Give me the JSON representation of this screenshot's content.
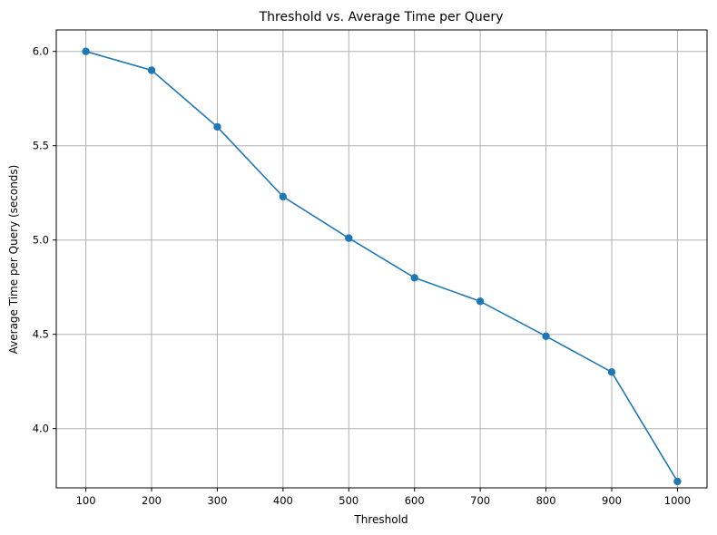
{
  "chart_data": {
    "type": "line",
    "title": "Threshold vs. Average Time per Query",
    "xlabel": "Threshold",
    "ylabel": "Average Time per Query (seconds)",
    "x": [
      100,
      200,
      300,
      400,
      500,
      600,
      700,
      800,
      900,
      1000
    ],
    "series": [
      {
        "values": [
          6.0,
          5.9,
          5.6,
          5.23,
          5.01,
          4.8,
          4.675,
          4.49,
          4.3,
          3.72
        ],
        "color": "#1f77b4",
        "marker": "circle"
      }
    ],
    "xticks": [
      "100",
      "200",
      "300",
      "400",
      "500",
      "600",
      "700",
      "800",
      "900",
      "1000"
    ],
    "yticks": [
      "4.0",
      "4.5",
      "5.0",
      "5.5",
      "6.0"
    ],
    "ytick_values": [
      4.0,
      4.5,
      5.0,
      5.5,
      6.0
    ],
    "xlim": [
      55,
      1045
    ],
    "ylim": [
      3.686,
      6.114
    ],
    "grid": true
  }
}
